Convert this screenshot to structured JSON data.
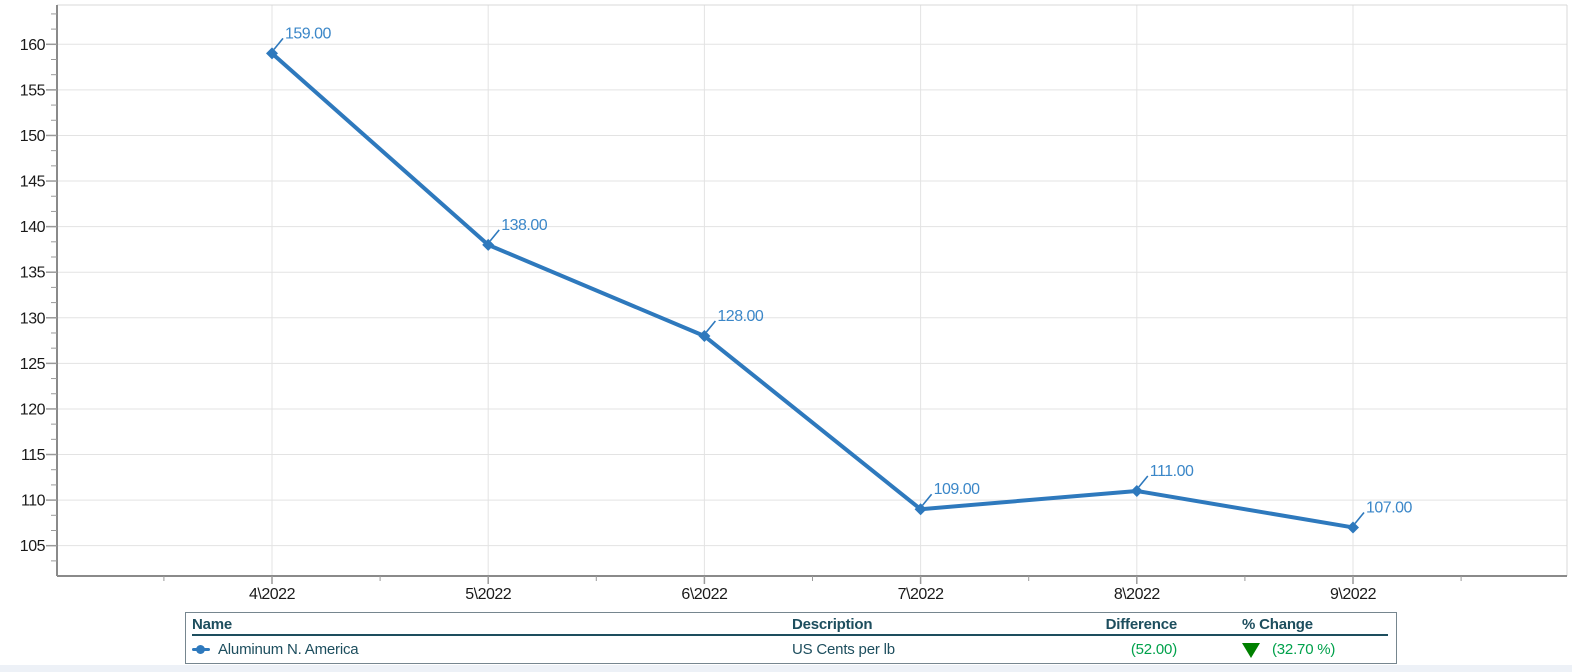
{
  "chart_data": {
    "type": "line",
    "title": "",
    "categories": [
      "4\\2022",
      "5\\2022",
      "6\\2022",
      "7\\2022",
      "8\\2022",
      "9\\2022"
    ],
    "series": [
      {
        "name": "Aluminum N. America",
        "values": [
          159,
          138,
          128,
          109,
          111,
          107
        ]
      }
    ],
    "point_labels": [
      "159.00",
      "138.00",
      "128.00",
      "109.00",
      "111.00",
      "107.00"
    ],
    "xlabel": "",
    "ylabel": "",
    "y_ticks": [
      105,
      110,
      115,
      120,
      125,
      130,
      135,
      140,
      145,
      150,
      155,
      160
    ],
    "ylim": [
      101.7,
      164.3
    ],
    "grid": true,
    "legend_position": "bottom-table",
    "line_color": "#2e79bd",
    "point_label_color": "#3b87c8",
    "axis_color": "#8a8a8a",
    "grid_color": "#e3e3e3",
    "tick_label_color": "#1a1a1a"
  },
  "legend_table": {
    "headers": {
      "name": "Name",
      "description": "Description",
      "difference": "Difference",
      "pct_change": "% Change"
    },
    "row": {
      "name": "Aluminum N. America",
      "description": "US Cents per lb",
      "difference": "(52.00)",
      "pct_change": "(32.70 %)",
      "trend": "down"
    },
    "colors": {
      "header_text": "#1d4e5e",
      "row_text": "#1d4e5e",
      "value_green": "#00a14b",
      "trend_green": "#008000",
      "marker_blue": "#2e79bd"
    }
  }
}
